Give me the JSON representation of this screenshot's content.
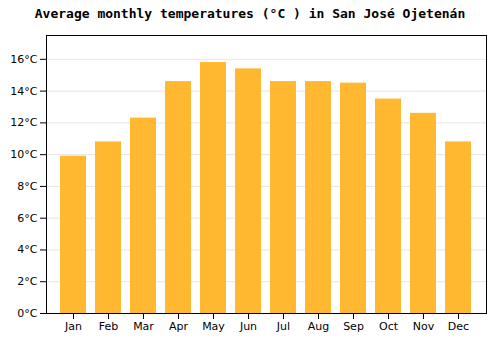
{
  "chart_data": {
    "type": "bar",
    "title": "Average monthly temperatures (°C ) in San José Ojetenán",
    "categories": [
      "Jan",
      "Feb",
      "Mar",
      "Apr",
      "May",
      "Jun",
      "Jul",
      "Aug",
      "Sep",
      "Oct",
      "Nov",
      "Dec"
    ],
    "values": [
      9.9,
      10.8,
      12.3,
      14.6,
      15.8,
      15.4,
      14.6,
      14.6,
      14.5,
      13.5,
      12.6,
      10.8
    ],
    "color": "#FFB830",
    "ylim": [
      0,
      17.5
    ],
    "yticks": [
      {
        "value": 0,
        "label": "0°C"
      },
      {
        "value": 2,
        "label": "2°C"
      },
      {
        "value": 4,
        "label": "4°C"
      },
      {
        "value": 6,
        "label": "6°C"
      },
      {
        "value": 8,
        "label": "8°C"
      },
      {
        "value": 10,
        "label": "10°C"
      },
      {
        "value": 12,
        "label": "12°C"
      },
      {
        "value": 14,
        "label": "14°C"
      },
      {
        "value": 16,
        "label": "16°C"
      }
    ],
    "grid": true
  }
}
